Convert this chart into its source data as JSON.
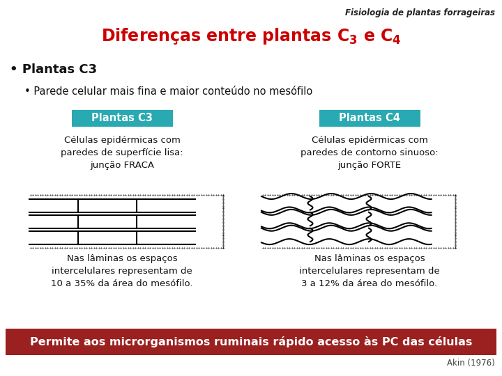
{
  "title_italic": "Fisiologia de plantas forrageiras",
  "main_title_latex": "Diferenças entre plantas $\\mathregular{C_3}$ e $\\mathregular{C_4}$",
  "main_title_color": "#cc0000",
  "bullet1": "• Plantas C3",
  "bullet2": "• Parede celular mais fina e maior conteúdo no mesófilo",
  "box_c3_label": "Plantas C3",
  "box_c4_label": "Plantas C4",
  "box_color": "#29a9b1",
  "box_text_color": "#ffffff",
  "c3_desc": "Células epidérmicas com\nparedes de superfície lisa:\njunção FRACA",
  "c4_desc": "Células epidérmicas com\nparedes de contorno sinuoso:\njunção FORTE",
  "c3_bottom": "Nas lâminas os espaços\nintercelulares representam de\n10 a 35% da área do mesófilo.",
  "c4_bottom": "Nas lâminas os espaços\nintercelulares representam de\n3 a 12% da área do mesófilo.",
  "footer_text": "Permite aos microrganismos ruminais rápido acesso às PC das células",
  "footer_bg": "#9b2020",
  "footer_text_color": "#ffffff",
  "akin_ref": "Akin (1976)",
  "bg_color": "#ffffff"
}
